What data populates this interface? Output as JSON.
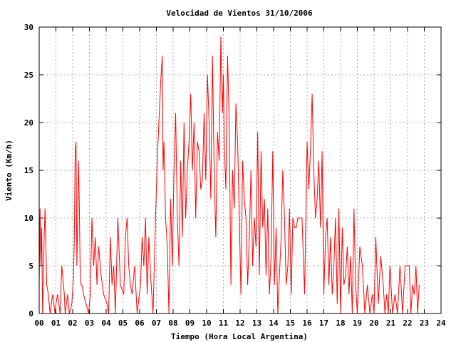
{
  "chart_data": {
    "type": "line",
    "title": "Velocidad de Vientos 31/10/2006",
    "xlabel": "Tiempo (Hora Local Argentina)",
    "ylabel": "Viento (Km/h)",
    "xlim": [
      0,
      24
    ],
    "ylim": [
      0,
      30
    ],
    "grid": true,
    "x_tick_labels": [
      "00",
      "01",
      "02",
      "03",
      "04",
      "05",
      "06",
      "07",
      "08",
      "09",
      "10",
      "11",
      "12",
      "13",
      "14",
      "15",
      "16",
      "17",
      "18",
      "19",
      "20",
      "21",
      "22",
      "23",
      "24"
    ],
    "y_ticks": [
      0,
      5,
      10,
      15,
      20,
      25,
      30
    ],
    "series": [
      {
        "color": "#ff0000",
        "x": [
          0.0,
          0.05,
          0.1,
          0.15,
          0.2,
          0.3,
          0.35,
          0.45,
          0.55,
          0.65,
          0.8,
          0.95,
          1.0,
          1.1,
          1.25,
          1.35,
          1.5,
          1.55,
          1.7,
          1.8,
          1.95,
          2.05,
          2.1,
          2.15,
          2.2,
          2.25,
          2.3,
          2.35,
          2.4,
          2.45,
          2.5,
          2.55,
          2.65,
          2.8,
          2.95,
          3.05,
          3.15,
          3.25,
          3.35,
          3.45,
          3.55,
          3.7,
          3.85,
          4.05,
          4.15,
          4.25,
          4.35,
          4.45,
          4.55,
          4.7,
          4.85,
          5.05,
          5.15,
          5.25,
          5.35,
          5.45,
          5.55,
          5.7,
          5.85,
          6.05,
          6.15,
          6.25,
          6.35,
          6.45,
          6.55,
          6.65,
          6.8,
          6.95,
          7.05,
          7.15,
          7.25,
          7.35,
          7.4,
          7.45,
          7.55,
          7.65,
          7.75,
          7.85,
          7.95,
          8.05,
          8.15,
          8.25,
          8.35,
          8.45,
          8.55,
          8.65,
          8.75,
          8.85,
          8.95,
          9.05,
          9.15,
          9.25,
          9.35,
          9.45,
          9.55,
          9.65,
          9.75,
          9.85,
          9.95,
          10.05,
          10.15,
          10.25,
          10.35,
          10.45,
          10.55,
          10.65,
          10.75,
          10.85,
          10.95,
          11.0,
          11.05,
          11.15,
          11.25,
          11.35,
          11.45,
          11.55,
          11.65,
          11.75,
          11.85,
          11.95,
          12.05,
          12.15,
          12.25,
          12.35,
          12.45,
          12.55,
          12.65,
          12.75,
          12.85,
          12.95,
          13.05,
          13.15,
          13.25,
          13.35,
          13.45,
          13.55,
          13.65,
          13.75,
          13.85,
          13.95,
          14.05,
          14.15,
          14.25,
          14.35,
          14.45,
          14.55,
          14.65,
          14.75,
          14.85,
          14.95,
          15.05,
          15.15,
          15.25,
          15.35,
          15.45,
          15.55,
          15.7,
          15.85,
          16.0,
          16.1,
          16.2,
          16.3,
          16.4,
          16.5,
          16.6,
          16.7,
          16.8,
          16.9,
          17.0,
          17.1,
          17.2,
          17.3,
          17.4,
          17.5,
          17.6,
          17.7,
          17.8,
          17.9,
          18.0,
          18.1,
          18.2,
          18.3,
          18.4,
          18.5,
          18.6,
          18.7,
          18.8,
          18.9,
          19.0,
          19.15,
          19.3,
          19.45,
          19.6,
          19.75,
          19.9,
          20.0,
          20.1,
          20.25,
          20.4,
          20.55,
          20.65,
          20.75,
          20.85,
          20.95,
          21.1,
          21.25,
          21.4,
          21.55,
          21.7,
          21.85,
          22.0,
          22.1,
          22.2,
          22.3,
          22.4,
          22.5,
          22.6,
          22.7
        ],
        "values": [
          3,
          11,
          5,
          9,
          0,
          8,
          11,
          3,
          2,
          0,
          2,
          0,
          1,
          2,
          0,
          5,
          2,
          0,
          2,
          0,
          1,
          4,
          8,
          17,
          18,
          5,
          10,
          16,
          11,
          4,
          3,
          3,
          2,
          1,
          0,
          2,
          10,
          5,
          8,
          3,
          7,
          4,
          2,
          1,
          0,
          8,
          3,
          5,
          0,
          10,
          3,
          2,
          8,
          10,
          5,
          3,
          2,
          5,
          0,
          3,
          8,
          5,
          10,
          2,
          8,
          4,
          0,
          10,
          16,
          20,
          24,
          27,
          15,
          18,
          10,
          7,
          0,
          12,
          5,
          15,
          21,
          10,
          5,
          16,
          8,
          20,
          10,
          15,
          18,
          23,
          15,
          20,
          10,
          18,
          17,
          13,
          14,
          21,
          14,
          25,
          20,
          12,
          27,
          15,
          8,
          19,
          16,
          29,
          21,
          25,
          18,
          13,
          27,
          20,
          3,
          15,
          11,
          22,
          18,
          10,
          2,
          16,
          12,
          10,
          3,
          8,
          15,
          5,
          10,
          7,
          19,
          4,
          17,
          9,
          12,
          4,
          11,
          2,
          6,
          17,
          3,
          9,
          0,
          4,
          8,
          15,
          10,
          3,
          5,
          11,
          2,
          10,
          9,
          9,
          10,
          10,
          10,
          2,
          18,
          13,
          17,
          23,
          15,
          10,
          12,
          16,
          9,
          17,
          2,
          8,
          10,
          3,
          8,
          2,
          5,
          10,
          1,
          11,
          0,
          9,
          3,
          4,
          7,
          2,
          6,
          0,
          11,
          3,
          0,
          7,
          5,
          0,
          3,
          0,
          2,
          0,
          8,
          1,
          6,
          3,
          0,
          2,
          0,
          5,
          0,
          2,
          0,
          5,
          0,
          5,
          5,
          5,
          0,
          3,
          2,
          5,
          0,
          3
        ]
      }
    ]
  }
}
